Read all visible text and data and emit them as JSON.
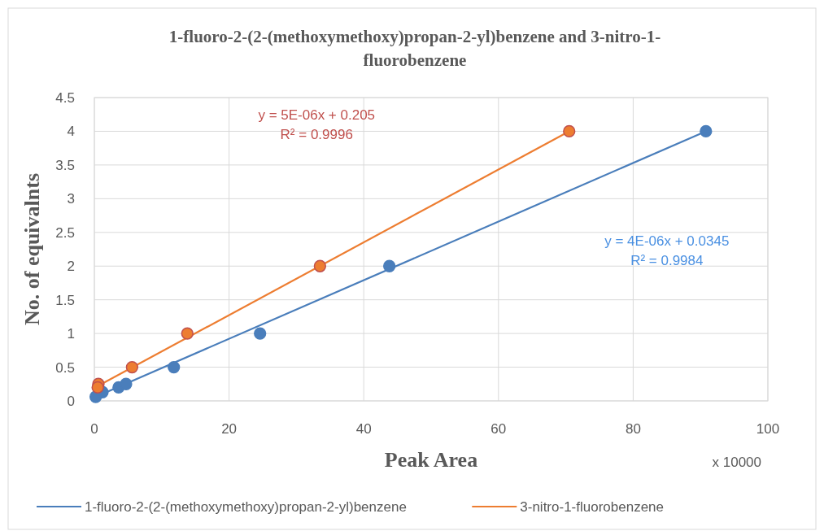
{
  "chart_data": {
    "type": "scatter",
    "title": "1-fluoro-2-(2-(methoxymethoxy)propan-2-yl)benzene and 3-nitro-1-fluorobenzene",
    "xlabel": "Peak Area",
    "ylabel": "No. of equivalnts",
    "xlim": [
      0,
      100
    ],
    "xticks": [
      0,
      20,
      40,
      60,
      80,
      100
    ],
    "ylim": [
      0,
      4.5
    ],
    "yticks": [
      0,
      0.5,
      1,
      1.5,
      2,
      2.5,
      3,
      3.5,
      4,
      4.5
    ],
    "grid": true,
    "legend": "bottom",
    "series": [
      {
        "color": "#4a7ebb",
        "marker": "circle",
        "x": [
          0.2,
          1.2,
          3.6,
          4.7,
          11.8,
          24.6,
          43.8,
          90.8
        ],
        "values": [
          0.06,
          0.13,
          0.2,
          0.25,
          0.5,
          1,
          2,
          4
        ]
      },
      {
        "color": "#ed7d31",
        "marker": "circle",
        "x": [
          0.6,
          0.5,
          5.6,
          13.8,
          33.5,
          70.5
        ],
        "values": [
          0.25,
          0.2,
          0.5,
          1,
          2,
          4
        ]
      },
      {
        "type": "line",
        "name": "1-fluoro-2-(2-(methoxymethoxy)propan-2-yl)benzene",
        "color": "#4a7ebb",
        "x": [
          0.2,
          90.8
        ],
        "values": [
          0.06,
          4
        ]
      },
      {
        "type": "line",
        "name": "3-nitro-1-fluorobenzene",
        "color": "#ed7d31",
        "x": [
          0.5,
          70.5
        ],
        "values": [
          0.22,
          4
        ]
      }
    ],
    "annotations": [
      "y = 5E-06x + 0.205",
      "R² = 0.9996",
      "y = 4E-06x + 0.0345",
      "R² = 0.9984",
      "x 10000"
    ]
  }
}
